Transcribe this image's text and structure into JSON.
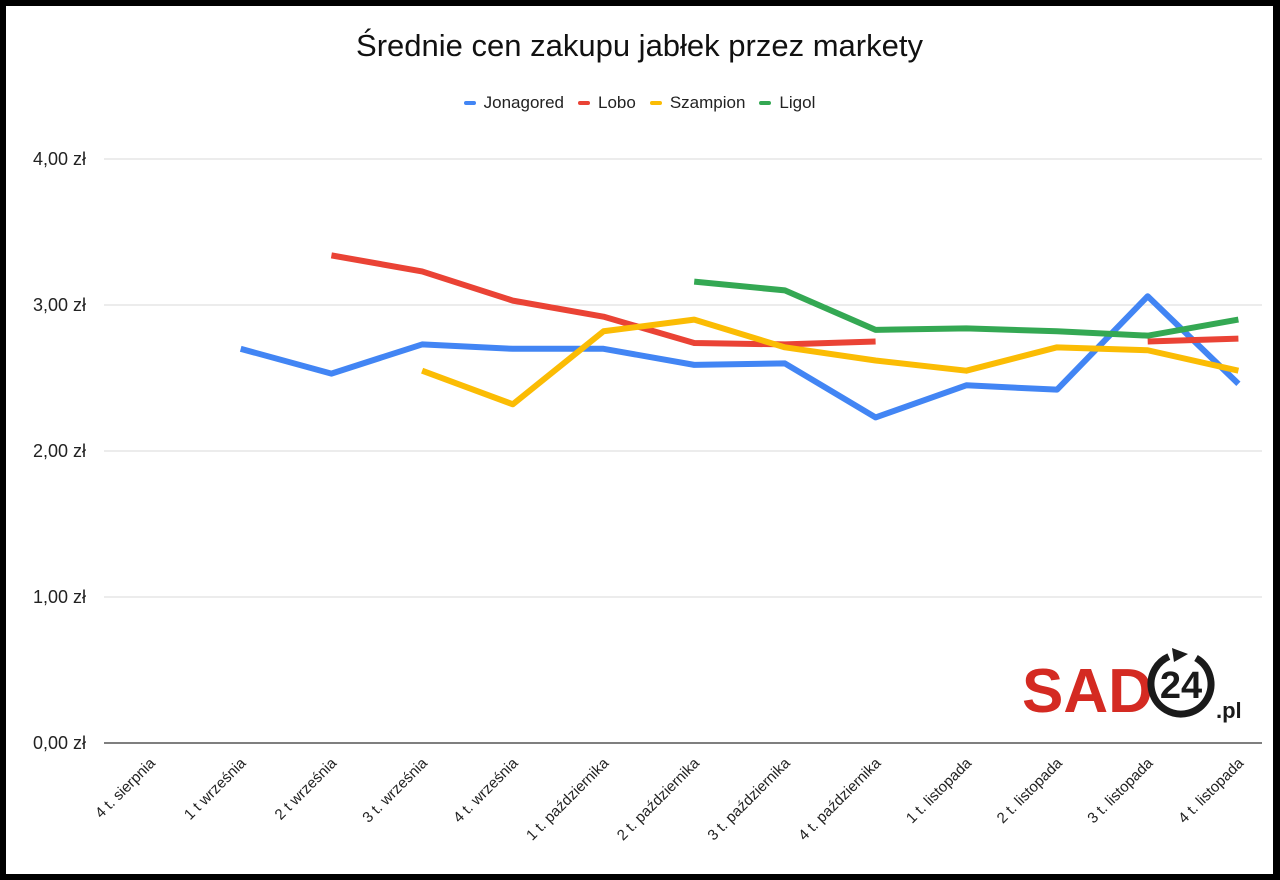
{
  "chart_data": {
    "type": "line",
    "title": "Średnie cen zakupu jabłek przez markety",
    "xlabel": "",
    "ylabel": "",
    "ylim": [
      0,
      4
    ],
    "yticks": [
      0,
      1,
      2,
      3,
      4
    ],
    "ytick_labels": [
      "0,00 zł",
      "1,00 zł",
      "2,00 zł",
      "3,00 zł",
      "4,00 zł"
    ],
    "grid": true,
    "legend_position": "top",
    "categories": [
      "4 t. sierpnia",
      "1 t września",
      "2 t września",
      "3 t. września",
      "4 t. września",
      "1 t. października",
      "2 t. października",
      "3 t. października",
      "4 t. października",
      "1 t. listopada",
      "2 t. listopada",
      "3 t. listopada",
      "4 t. listopada"
    ],
    "series": [
      {
        "name": "Jonagored",
        "color": "#4285F4",
        "values": [
          null,
          2.7,
          2.53,
          2.73,
          2.7,
          2.7,
          2.59,
          2.6,
          2.23,
          2.45,
          2.42,
          3.06,
          2.46
        ]
      },
      {
        "name": "Lobo",
        "color": "#EA4335",
        "values": [
          null,
          null,
          3.34,
          3.23,
          3.03,
          2.92,
          2.74,
          2.73,
          2.75,
          null,
          null,
          2.75,
          2.77
        ]
      },
      {
        "name": "Szampion",
        "color": "#FBBC04",
        "values": [
          null,
          null,
          null,
          2.55,
          2.32,
          2.82,
          2.9,
          2.71,
          2.62,
          2.55,
          2.71,
          2.69,
          2.55
        ]
      },
      {
        "name": "Ligol",
        "color": "#34A853",
        "values": [
          null,
          null,
          null,
          null,
          null,
          null,
          3.16,
          3.1,
          2.83,
          2.84,
          2.82,
          2.79,
          2.9
        ]
      }
    ]
  },
  "logo": {
    "main": "SAD",
    "number": "24",
    "suffix": ".pl"
  }
}
